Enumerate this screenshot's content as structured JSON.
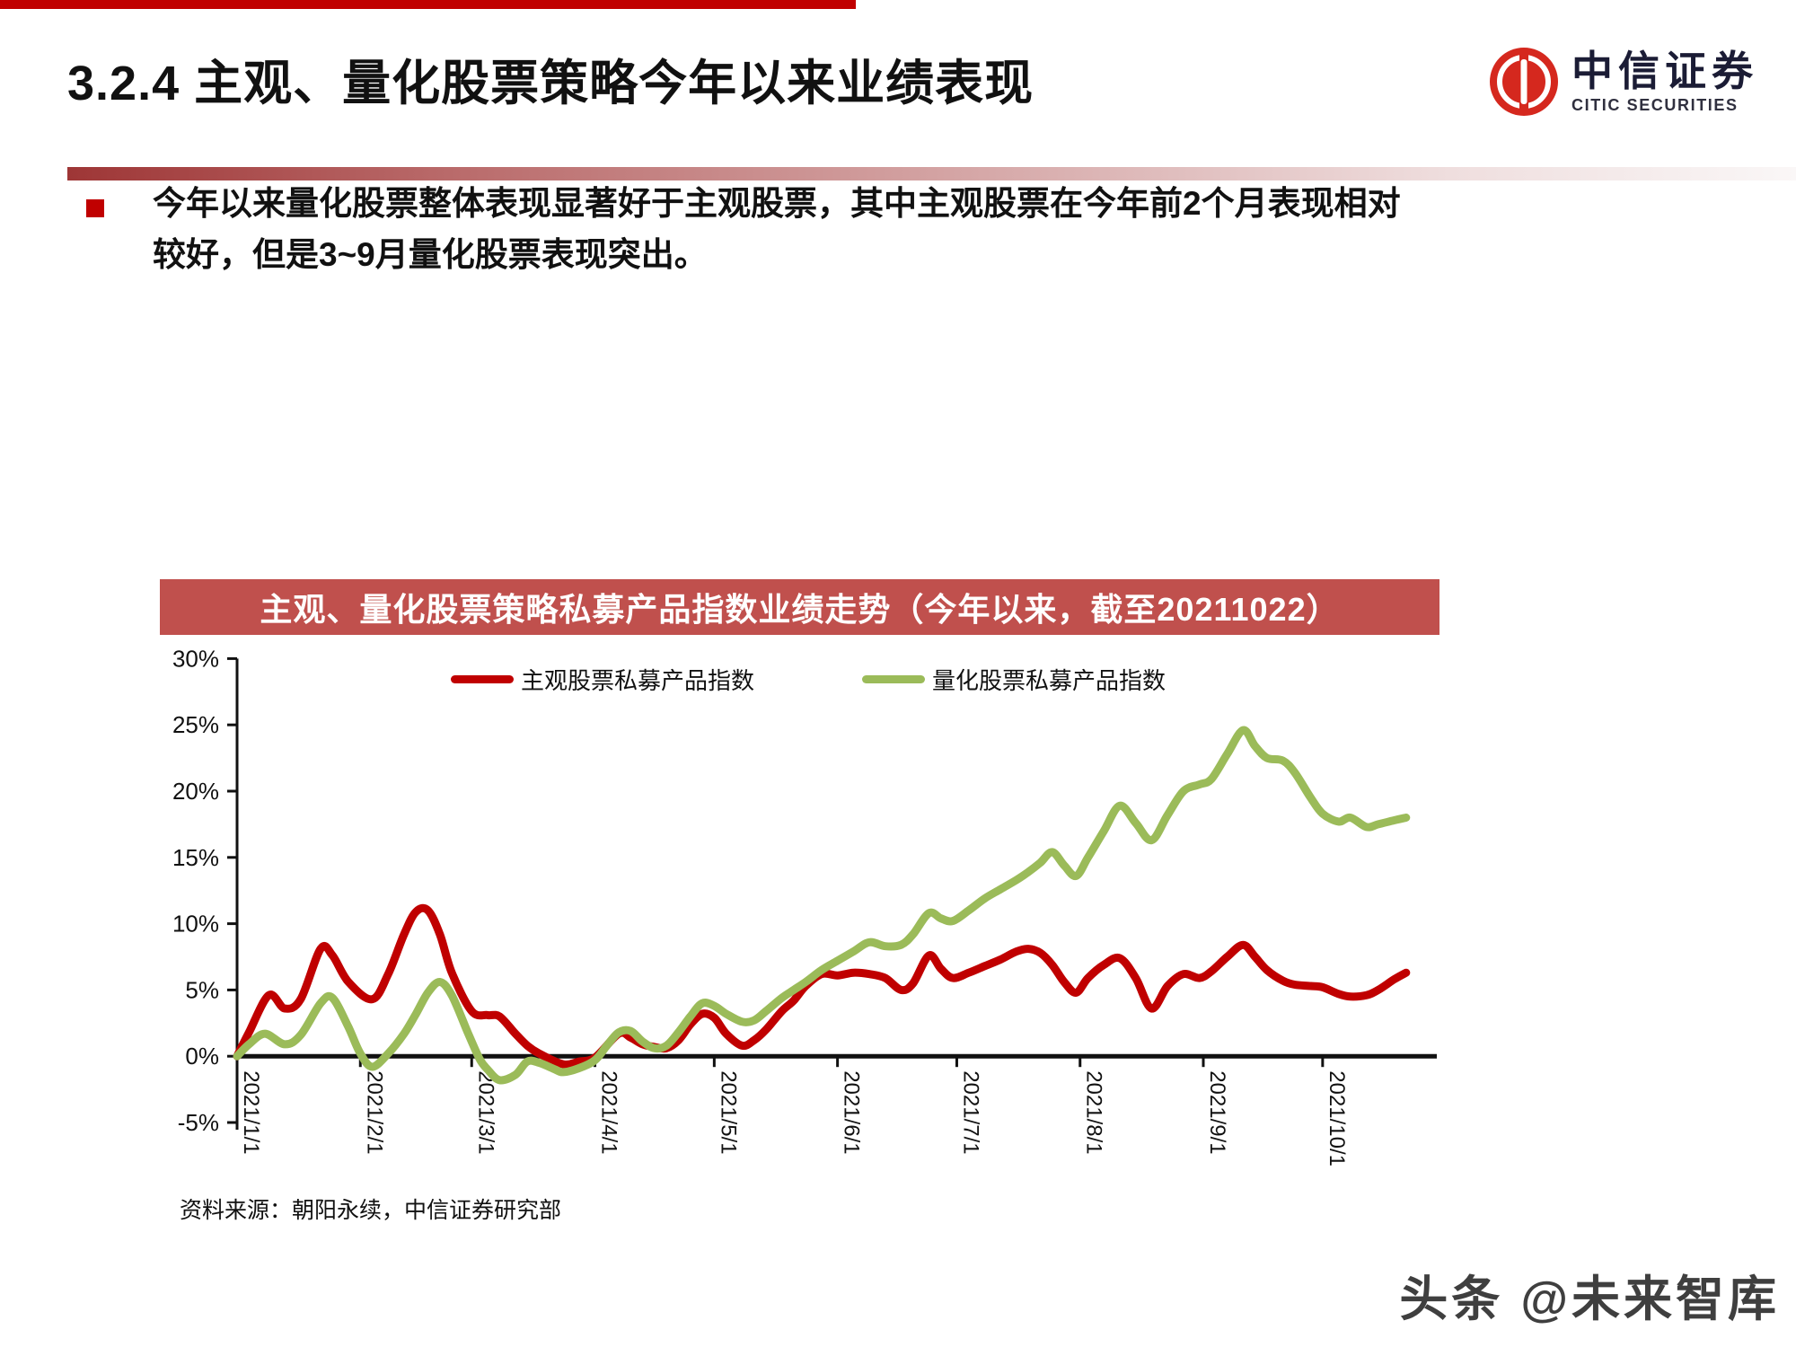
{
  "slide": {
    "title": "3.2.4 主观、量化股票策略今年以来业绩表现",
    "bullet_text": "今年以来量化股票整体表现显著好于主观股票，其中主观股票在今年前2个月表现相对较好，但是3~9月量化股票表现突出。",
    "source_note": "资料来源：朝阳永续，中信证券研究部",
    "watermark": "头条 @未来智库",
    "accent_red": "#c00000",
    "title_bar_bg": "#c0504d"
  },
  "logo": {
    "cn_name": "中信证券",
    "en_name": "CITIC SECURITIES",
    "brand_red": "#d5281e"
  },
  "chart_data": {
    "type": "line",
    "title": "主观、量化股票策略私募产品指数业绩走势（今年以来，截至20211022）",
    "xlabel": "",
    "ylabel": "",
    "ylim": [
      -5,
      30
    ],
    "grid": false,
    "legend_position": "top",
    "y_tick_values": [
      30,
      25,
      20,
      15,
      10,
      5,
      0,
      -5
    ],
    "y_tick_labels": [
      "30%",
      "25%",
      "20%",
      "15%",
      "10%",
      "5%",
      "0%",
      "-5%"
    ],
    "x_tick_days": [
      0,
      31,
      59,
      90,
      120,
      151,
      181,
      212,
      243,
      273
    ],
    "x_tick_labels": [
      "2021/1/1",
      "2021/2/1",
      "2021/3/1",
      "2021/4/1",
      "2021/5/1",
      "2021/6/1",
      "2021/7/1",
      "2021/8/1",
      "2021/9/1",
      "2021/10/1"
    ],
    "x_range_days": [
      0,
      294
    ],
    "series": [
      {
        "name": "主观股票私募产品指数",
        "color": "#c00000",
        "unit": "%",
        "points": [
          [
            0,
            0
          ],
          [
            3,
            1.8
          ],
          [
            8,
            4.6
          ],
          [
            12,
            3.6
          ],
          [
            16,
            4.3
          ],
          [
            21,
            8.1
          ],
          [
            24,
            7.6
          ],
          [
            28,
            5.6
          ],
          [
            34,
            4.3
          ],
          [
            38,
            6.2
          ],
          [
            42,
            9.2
          ],
          [
            45,
            10.9
          ],
          [
            48,
            11.0
          ],
          [
            51,
            9.2
          ],
          [
            54,
            6.3
          ],
          [
            59,
            3.4
          ],
          [
            63,
            3.1
          ],
          [
            66,
            3.0
          ],
          [
            70,
            1.7
          ],
          [
            73,
            0.8
          ],
          [
            76,
            0.2
          ],
          [
            82,
            -0.6
          ],
          [
            86,
            -0.4
          ],
          [
            90,
            -0.1
          ],
          [
            96,
            1.7
          ],
          [
            99,
            1.4
          ],
          [
            102,
            0.9
          ],
          [
            105,
            0.7
          ],
          [
            108,
            0.6
          ],
          [
            111,
            1.2
          ],
          [
            114,
            2.4
          ],
          [
            117,
            3.2
          ],
          [
            120,
            2.9
          ],
          [
            123,
            1.7
          ],
          [
            127,
            0.8
          ],
          [
            130,
            1.2
          ],
          [
            133,
            2.0
          ],
          [
            137,
            3.4
          ],
          [
            140,
            4.2
          ],
          [
            143,
            5.3
          ],
          [
            147,
            6.2
          ],
          [
            151,
            6.1
          ],
          [
            155,
            6.3
          ],
          [
            159,
            6.2
          ],
          [
            163,
            5.9
          ],
          [
            167,
            5.0
          ],
          [
            170,
            5.5
          ],
          [
            174,
            7.6
          ],
          [
            177,
            6.6
          ],
          [
            180,
            5.9
          ],
          [
            184,
            6.3
          ],
          [
            188,
            6.8
          ],
          [
            192,
            7.3
          ],
          [
            196,
            7.9
          ],
          [
            199,
            8.1
          ],
          [
            202,
            7.8
          ],
          [
            205,
            6.9
          ],
          [
            208,
            5.6
          ],
          [
            211,
            4.8
          ],
          [
            214,
            5.9
          ],
          [
            218,
            6.9
          ],
          [
            222,
            7.4
          ],
          [
            226,
            5.9
          ],
          [
            230,
            3.6
          ],
          [
            234,
            5.3
          ],
          [
            238,
            6.2
          ],
          [
            242,
            5.9
          ],
          [
            245,
            6.4
          ],
          [
            249,
            7.5
          ],
          [
            253,
            8.4
          ],
          [
            256,
            7.5
          ],
          [
            259,
            6.5
          ],
          [
            263,
            5.7
          ],
          [
            266,
            5.4
          ],
          [
            270,
            5.3
          ],
          [
            273,
            5.2
          ],
          [
            277,
            4.7
          ],
          [
            280,
            4.5
          ],
          [
            284,
            4.6
          ],
          [
            287,
            5.0
          ],
          [
            291,
            5.8
          ],
          [
            294,
            6.3
          ]
        ]
      },
      {
        "name": "量化股票私募产品指数",
        "color": "#9bbb59",
        "unit": "%",
        "points": [
          [
            0,
            0
          ],
          [
            3,
            0.9
          ],
          [
            7,
            1.7
          ],
          [
            12,
            0.9
          ],
          [
            16,
            1.6
          ],
          [
            21,
            4.0
          ],
          [
            24,
            4.4
          ],
          [
            28,
            2.2
          ],
          [
            31,
            0.2
          ],
          [
            34,
            -0.8
          ],
          [
            38,
            0.2
          ],
          [
            42,
            1.7
          ],
          [
            45,
            3.2
          ],
          [
            48,
            4.8
          ],
          [
            51,
            5.6
          ],
          [
            54,
            4.6
          ],
          [
            58,
            1.8
          ],
          [
            61,
            -0.2
          ],
          [
            63,
            -1.0
          ],
          [
            66,
            -1.8
          ],
          [
            70,
            -1.4
          ],
          [
            73,
            -0.4
          ],
          [
            76,
            -0.5
          ],
          [
            80,
            -1.0
          ],
          [
            82,
            -1.2
          ],
          [
            86,
            -0.9
          ],
          [
            90,
            -0.3
          ],
          [
            93,
            0.8
          ],
          [
            96,
            1.8
          ],
          [
            99,
            1.9
          ],
          [
            102,
            1.1
          ],
          [
            105,
            0.6
          ],
          [
            108,
            0.8
          ],
          [
            111,
            1.8
          ],
          [
            114,
            3.0
          ],
          [
            117,
            4.0
          ],
          [
            120,
            3.8
          ],
          [
            123,
            3.2
          ],
          [
            127,
            2.6
          ],
          [
            130,
            2.7
          ],
          [
            133,
            3.4
          ],
          [
            137,
            4.4
          ],
          [
            140,
            5.0
          ],
          [
            143,
            5.6
          ],
          [
            147,
            6.5
          ],
          [
            151,
            7.2
          ],
          [
            155,
            7.9
          ],
          [
            159,
            8.6
          ],
          [
            163,
            8.3
          ],
          [
            167,
            8.4
          ],
          [
            170,
            9.2
          ],
          [
            174,
            10.8
          ],
          [
            177,
            10.4
          ],
          [
            180,
            10.2
          ],
          [
            184,
            11.0
          ],
          [
            188,
            11.9
          ],
          [
            192,
            12.6
          ],
          [
            196,
            13.3
          ],
          [
            199,
            13.9
          ],
          [
            202,
            14.6
          ],
          [
            205,
            15.4
          ],
          [
            208,
            14.4
          ],
          [
            211,
            13.6
          ],
          [
            214,
            15.0
          ],
          [
            218,
            17.0
          ],
          [
            222,
            18.9
          ],
          [
            226,
            17.6
          ],
          [
            230,
            16.3
          ],
          [
            234,
            18.2
          ],
          [
            238,
            20.0
          ],
          [
            242,
            20.5
          ],
          [
            245,
            20.9
          ],
          [
            249,
            22.8
          ],
          [
            253,
            24.6
          ],
          [
            256,
            23.4
          ],
          [
            259,
            22.5
          ],
          [
            263,
            22.3
          ],
          [
            266,
            21.4
          ],
          [
            270,
            19.5
          ],
          [
            273,
            18.3
          ],
          [
            277,
            17.7
          ],
          [
            280,
            18.0
          ],
          [
            284,
            17.3
          ],
          [
            287,
            17.5
          ],
          [
            291,
            17.8
          ],
          [
            294,
            18.0
          ]
        ]
      }
    ]
  }
}
